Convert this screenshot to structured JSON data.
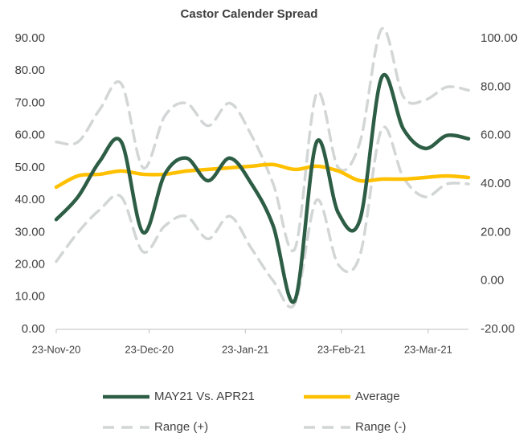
{
  "chart_data": {
    "type": "line",
    "title": "Castor Calender Spread",
    "x": [
      "2020-11-23",
      "2020-11-30",
      "2020-12-07",
      "2020-12-14",
      "2020-12-21",
      "2020-12-28",
      "2021-01-04",
      "2021-01-11",
      "2021-01-18",
      "2021-01-25",
      "2021-02-01",
      "2021-02-08",
      "2021-02-15",
      "2021-02-22",
      "2021-03-01",
      "2021-03-08",
      "2021-03-15",
      "2021-03-22",
      "2021-03-29",
      "2021-04-05"
    ],
    "xlim": [
      "2020-11-23",
      "2021-04-05"
    ],
    "xticks": [
      {
        "value": "2020-11-23",
        "label": "23-Nov-20"
      },
      {
        "value": "2020-12-23",
        "label": "23-Dec-20"
      },
      {
        "value": "2021-01-23",
        "label": "23-Jan-21"
      },
      {
        "value": "2021-02-23",
        "label": "23-Feb-21"
      },
      {
        "value": "2021-03-23",
        "label": "23-Mar-21"
      }
    ],
    "ylim": [
      0,
      90
    ],
    "yticks": [
      {
        "value": 0,
        "label": "0.00"
      },
      {
        "value": 10,
        "label": "10.00"
      },
      {
        "value": 20,
        "label": "20.00"
      },
      {
        "value": 30,
        "label": "30.00"
      },
      {
        "value": 40,
        "label": "40.00"
      },
      {
        "value": 50,
        "label": "50.00"
      },
      {
        "value": 60,
        "label": "60.00"
      },
      {
        "value": 70,
        "label": "70.00"
      },
      {
        "value": 80,
        "label": "80.00"
      },
      {
        "value": 90,
        "label": "90.00"
      }
    ],
    "y2lim": [
      -20,
      100
    ],
    "y2ticks": [
      {
        "value": -20,
        "label": "-20.00"
      },
      {
        "value": 0,
        "label": "0.00"
      },
      {
        "value": 20,
        "label": "20.00"
      },
      {
        "value": 40,
        "label": "40.00"
      },
      {
        "value": 60,
        "label": "60.00"
      },
      {
        "value": 80,
        "label": "80.00"
      },
      {
        "value": 100,
        "label": "100.00"
      }
    ],
    "series": [
      {
        "name": "Range (+)",
        "color": "#d3d6d6",
        "dashed": true,
        "values": [
          58,
          58,
          68,
          76,
          50,
          66,
          70,
          63,
          70,
          60,
          45,
          25,
          73,
          50,
          58,
          93,
          72,
          71,
          75,
          74
        ]
      },
      {
        "name": "Range (-)",
        "color": "#d3d6d6",
        "dashed": true,
        "values": [
          21,
          30,
          37,
          41,
          24,
          32,
          35,
          28,
          35,
          25,
          15,
          8,
          40,
          20,
          23,
          62,
          47,
          41,
          45,
          45
        ]
      },
      {
        "name": "Average",
        "color": "#ffc000",
        "values": [
          44,
          47.5,
          48,
          49,
          48,
          48,
          49,
          49.5,
          50,
          50.5,
          51,
          49.5,
          50.5,
          49,
          46,
          46.5,
          46.5,
          47,
          47.5,
          47
        ]
      },
      {
        "name": "MAY21 Vs. APR21",
        "color": "#2d5e45",
        "values": [
          34,
          41,
          52,
          58,
          30,
          48,
          53,
          46,
          53,
          45,
          32,
          9,
          58,
          36,
          34,
          78,
          62,
          56,
          60,
          59
        ]
      }
    ],
    "legend_order": [
      3,
      2,
      0,
      1
    ],
    "legend": "bottom"
  }
}
